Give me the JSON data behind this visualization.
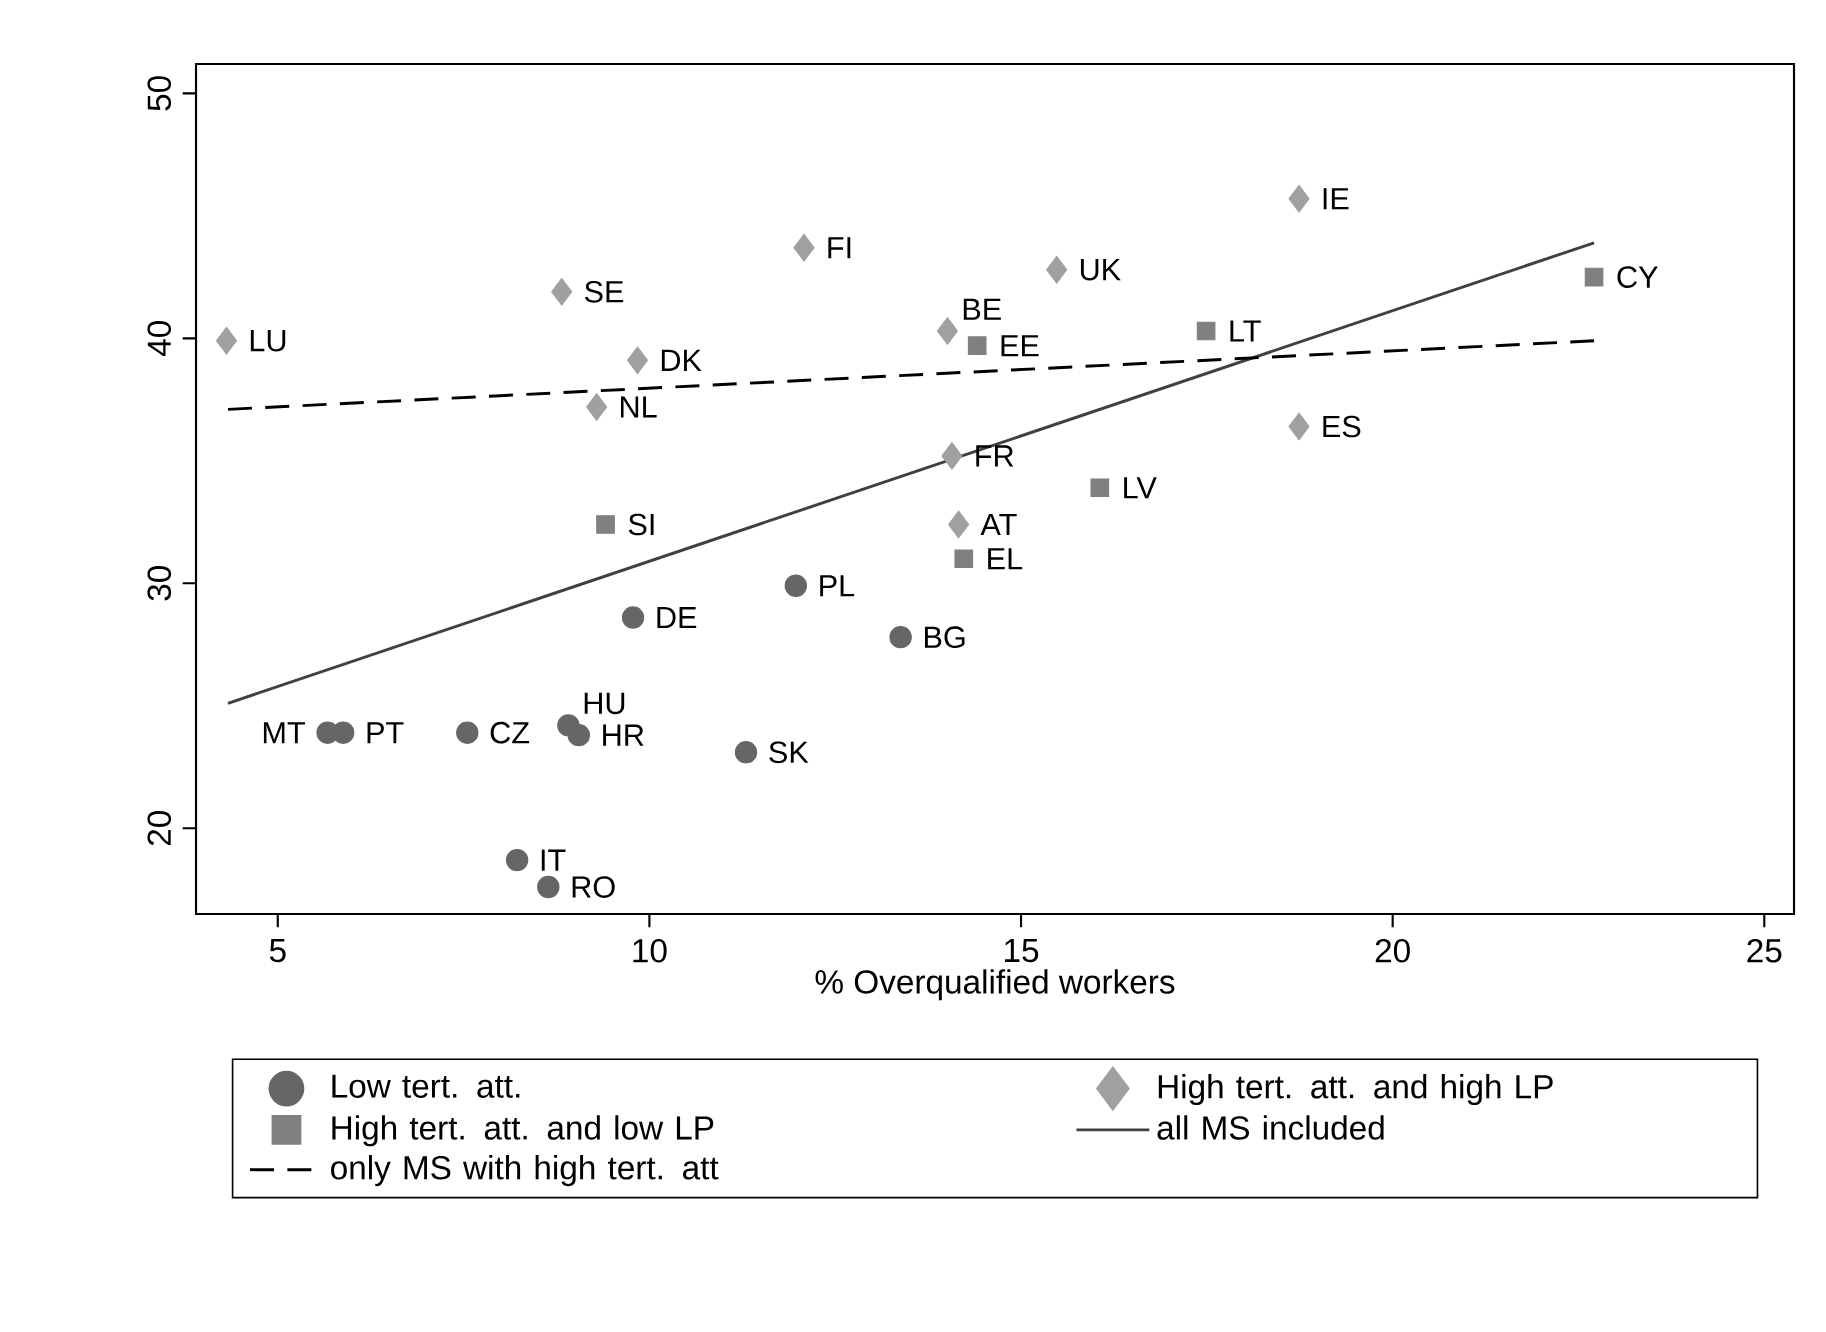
{
  "chart_data": {
    "type": "scatter",
    "xlabel": "% Overqualified workers",
    "xlim": [
      3.9,
      25.4
    ],
    "ylim": [
      16.5,
      51.2
    ],
    "xticks": [
      5,
      10,
      15,
      20,
      25
    ],
    "yticks": [
      20,
      30,
      40,
      50
    ],
    "legend": "bottom",
    "series": [
      {
        "name": "Low tert. att.",
        "color": "#666666",
        "marker": "circle",
        "x": [
          5.67,
          5.88,
          7.55,
          8.91,
          9.05,
          9.78,
          11.97,
          13.38,
          11.3,
          8.22,
          8.64
        ],
        "values": [
          23.9,
          23.9,
          23.9,
          24.2,
          23.8,
          28.6,
          29.9,
          27.8,
          23.1,
          18.7,
          17.6
        ]
      },
      {
        "name": "High tert. att. and high LP",
        "color": "#a0a0a0",
        "marker": "diamond",
        "x": [
          4.31,
          8.82,
          12.08,
          9.84,
          9.29,
          14.01,
          14.07,
          14.16,
          15.48,
          18.74,
          18.74
        ],
        "values": [
          39.9,
          41.9,
          43.7,
          39.1,
          37.2,
          40.3,
          35.2,
          32.4,
          42.8,
          45.7,
          36.4
        ]
      },
      {
        "name": "High tert. att. and low LP",
        "color": "#808080",
        "marker": "square",
        "x": [
          9.41,
          14.23,
          14.41,
          17.49,
          16.06,
          22.71
        ],
        "values": [
          32.4,
          31.0,
          39.7,
          40.3,
          33.9,
          42.5
        ]
      },
      {
        "name": "all MS included",
        "type": "line",
        "color": "#404040",
        "line_style": "solid",
        "x": [
          4.33,
          22.71
        ],
        "values": [
          25.1,
          43.9
        ]
      },
      {
        "name": "only MS with high tert. att",
        "type": "line",
        "color": "#000000",
        "line_style": "dashed",
        "x": [
          4.33,
          22.71
        ],
        "values": [
          37.1,
          39.9
        ]
      }
    ],
    "annotations": [
      {
        "text": "MT",
        "x": 5.67,
        "y": 23.9
      },
      {
        "text": "PT",
        "x": 5.88,
        "y": 23.9
      },
      {
        "text": "CZ",
        "x": 7.55,
        "y": 23.9
      },
      {
        "text": "HU",
        "x": 8.91,
        "y": 24.2
      },
      {
        "text": "HR",
        "x": 9.05,
        "y": 23.8
      },
      {
        "text": "DE",
        "x": 9.78,
        "y": 28.6
      },
      {
        "text": "PL",
        "x": 11.97,
        "y": 29.9
      },
      {
        "text": "BG",
        "x": 13.38,
        "y": 27.8
      },
      {
        "text": "SK",
        "x": 11.3,
        "y": 23.1
      },
      {
        "text": "IT",
        "x": 8.22,
        "y": 18.7
      },
      {
        "text": "RO",
        "x": 8.64,
        "y": 17.6
      },
      {
        "text": "LU",
        "x": 4.31,
        "y": 39.9
      },
      {
        "text": "SE",
        "x": 8.82,
        "y": 41.9
      },
      {
        "text": "FI",
        "x": 12.08,
        "y": 43.7
      },
      {
        "text": "DK",
        "x": 9.84,
        "y": 39.1
      },
      {
        "text": "NL",
        "x": 9.29,
        "y": 37.2
      },
      {
        "text": "BE",
        "x": 14.01,
        "y": 40.3
      },
      {
        "text": "FR",
        "x": 14.07,
        "y": 35.2
      },
      {
        "text": "AT",
        "x": 14.16,
        "y": 32.4
      },
      {
        "text": "UK",
        "x": 15.48,
        "y": 42.8
      },
      {
        "text": "IE",
        "x": 18.74,
        "y": 45.7
      },
      {
        "text": "ES",
        "x": 18.74,
        "y": 36.4
      },
      {
        "text": "SI",
        "x": 9.41,
        "y": 32.4
      },
      {
        "text": "EL",
        "x": 14.23,
        "y": 31.0
      },
      {
        "text": "EE",
        "x": 14.41,
        "y": 39.7
      },
      {
        "text": "LT",
        "x": 17.49,
        "y": 40.3
      },
      {
        "text": "LV",
        "x": 16.06,
        "y": 33.9
      },
      {
        "text": "CY",
        "x": 22.71,
        "y": 42.5
      }
    ]
  }
}
